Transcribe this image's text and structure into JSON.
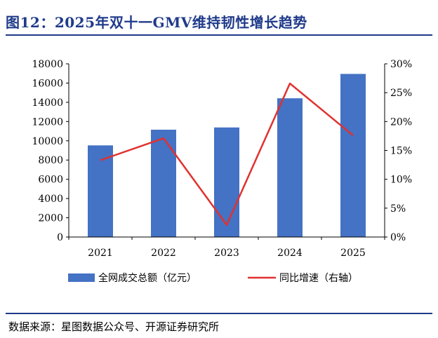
{
  "header": {
    "title": "图12：2025年双十一GMV维持韧性增长趋势"
  },
  "footer": {
    "source": "数据来源：星图数据公众号、开源证券研究所"
  },
  "chart_data": {
    "type": "bar",
    "categories": [
      "2021",
      "2022",
      "2023",
      "2024",
      "2025"
    ],
    "series": [
      {
        "name": "全网成交总额（亿元）",
        "type": "bar",
        "axis": "left",
        "color": "#4472c4",
        "values": [
          9523,
          11154,
          11386,
          14418,
          16950
        ]
      },
      {
        "name": "同比增速（右轴）",
        "type": "line",
        "axis": "right",
        "color": "#e0312f",
        "values": [
          13.3,
          17.1,
          2.1,
          26.6,
          17.6
        ]
      }
    ],
    "ylim": [
      0,
      18000
    ],
    "yticks": [
      "0",
      "2000",
      "4000",
      "6000",
      "8000",
      "10000",
      "12000",
      "14000",
      "16000",
      "18000"
    ],
    "y2lim": [
      0,
      30
    ],
    "y2ticks": [
      "0%",
      "5%",
      "10%",
      "15%",
      "20%",
      "25%",
      "30%"
    ],
    "legend_position": "bottom",
    "grid": false
  }
}
